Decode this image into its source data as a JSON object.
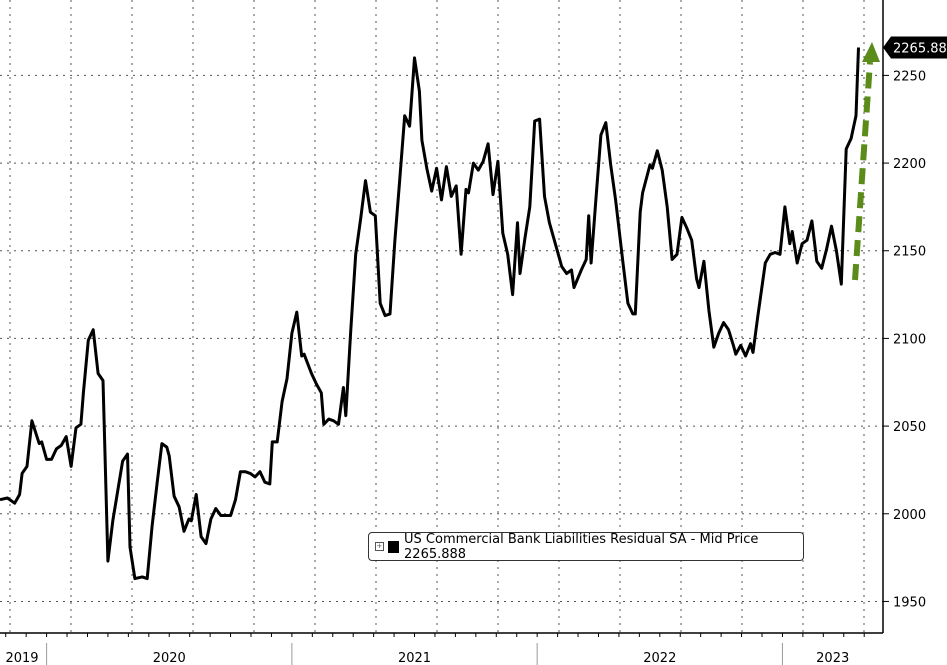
{
  "chart_data": {
    "type": "line",
    "title": "",
    "xlabel": "",
    "ylabel": "",
    "x_ticks": [
      "2019",
      "2020",
      "2021",
      "2022",
      "2023"
    ],
    "y_ticks": [
      1950,
      2000,
      2050,
      2100,
      2150,
      2200,
      2250
    ],
    "xlim": [
      2019.81,
      2023.41
    ],
    "ylim": [
      1932,
      2293
    ],
    "grid": true,
    "y_axis_side": "right",
    "legend_position": "bottom-right",
    "last_value_label": "2265.888",
    "annotation": {
      "type": "dashed-arrow",
      "direction": "up",
      "color": "#5b8c1a"
    },
    "series": [
      {
        "name": "US Commercial Bank Liabilities Residual SA - Mid Price 2265.888",
        "color": "#000000",
        "x": [
          2019.81,
          2019.84,
          2019.87,
          2019.89,
          2019.9,
          2019.92,
          2019.94,
          2019.97,
          2019.98,
          2020.0,
          2020.02,
          2020.04,
          2020.06,
          2020.08,
          2020.1,
          2020.12,
          2020.14,
          2020.15,
          2020.17,
          2020.19,
          2020.21,
          2020.23,
          2020.25,
          2020.27,
          2020.29,
          2020.31,
          2020.33,
          2020.34,
          2020.36,
          2020.39,
          2020.41,
          2020.43,
          2020.45,
          2020.47,
          2020.49,
          2020.5,
          2020.52,
          2020.54,
          2020.56,
          2020.58,
          2020.59,
          2020.61,
          2020.63,
          2020.65,
          2020.67,
          2020.69,
          2020.71,
          2020.73,
          2020.75,
          2020.77,
          2020.79,
          2020.81,
          2020.83,
          2020.85,
          2020.87,
          2020.89,
          2020.91,
          2020.92,
          2020.94,
          2020.96,
          2020.98,
          2021.0,
          2021.02,
          2021.04,
          2021.05,
          2021.08,
          2021.1,
          2021.12,
          2021.13,
          2021.15,
          2021.17,
          2021.19,
          2021.21,
          2021.22,
          2021.24,
          2021.26,
          2021.28,
          2021.3,
          2021.32,
          2021.34,
          2021.36,
          2021.38,
          2021.4,
          2021.42,
          2021.44,
          2021.46,
          2021.48,
          2021.5,
          2021.52,
          2021.53,
          2021.55,
          2021.57,
          2021.59,
          2021.61,
          2021.63,
          2021.65,
          2021.67,
          2021.69,
          2021.71,
          2021.72,
          2021.74,
          2021.76,
          2021.78,
          2021.8,
          2021.82,
          2021.84,
          2021.86,
          2021.88,
          2021.9,
          2021.92,
          2021.93,
          2021.95,
          2021.97,
          2021.99,
          2022.01,
          2022.03,
          2022.05,
          2022.08,
          2022.1,
          2022.12,
          2022.14,
          2022.15,
          2022.18,
          2022.2,
          2022.21,
          2022.22,
          2022.24,
          2022.26,
          2022.28,
          2022.3,
          2022.32,
          2022.35,
          2022.37,
          2022.39,
          2022.4,
          2022.42,
          2022.43,
          2022.46,
          2022.47,
          2022.49,
          2022.51,
          2022.53,
          2022.55,
          2022.57,
          2022.59,
          2022.61,
          2022.63,
          2022.65,
          2022.66,
          2022.68,
          2022.7,
          2022.72,
          2022.74,
          2022.76,
          2022.78,
          2022.8,
          2022.81,
          2022.83,
          2022.85,
          2022.87,
          2022.88,
          2022.9,
          2022.93,
          2022.95,
          2022.97,
          2022.99,
          2023.01,
          2023.03,
          2023.04,
          2023.06,
          2023.08,
          2023.1,
          2023.12,
          2023.14,
          2023.16,
          2023.18,
          2023.2,
          2023.22,
          2023.24,
          2023.26,
          2023.28,
          2023.3,
          2023.31
        ],
        "y": [
          2008,
          2009,
          2006,
          2011,
          2023,
          2027,
          2053,
          2040,
          2041,
          2031,
          2031,
          2037,
          2039,
          2044,
          2027,
          2049,
          2051,
          2069,
          2099,
          2105,
          2080,
          2076,
          1973,
          1996,
          2013,
          2030,
          2034,
          1981,
          1963,
          1964,
          1963,
          1993,
          2017,
          2040,
          2038,
          2033,
          2010,
          2004,
          1990,
          1997,
          1996,
          2011,
          1987,
          1983,
          1997,
          2003,
          1999,
          1999,
          1999,
          2008,
          2024,
          2024,
          2023,
          2021,
          2024,
          2018,
          2017,
          2041,
          2041,
          2064,
          2077,
          2103,
          2115,
          2090,
          2091,
          2080,
          2074,
          2069,
          2051,
          2054,
          2053,
          2051,
          2072,
          2056,
          2104,
          2148,
          2168,
          2190,
          2172,
          2170,
          2120,
          2113,
          2114,
          2156,
          2191,
          2227,
          2221,
          2260,
          2241,
          2213,
          2197,
          2184,
          2197,
          2179,
          2198,
          2181,
          2187,
          2148,
          2185,
          2183,
          2200,
          2196,
          2201,
          2211,
          2182,
          2201,
          2160,
          2148,
          2125,
          2166,
          2137,
          2157,
          2175,
          2224,
          2225,
          2181,
          2166,
          2151,
          2141,
          2137,
          2139,
          2129,
          2139,
          2145,
          2170,
          2143,
          2180,
          2216,
          2223,
          2199,
          2179,
          2143,
          2120,
          2114,
          2114,
          2172,
          2183,
          2199,
          2197,
          2207,
          2196,
          2175,
          2145,
          2148,
          2169,
          2163,
          2156,
          2134,
          2129,
          2144,
          2116,
          2095,
          2103,
          2109,
          2105,
          2096,
          2091,
          2096,
          2090,
          2097,
          2092,
          2113,
          2143,
          2148,
          2149,
          2148,
          2175,
          2154,
          2161,
          2143,
          2154,
          2156,
          2167,
          2144,
          2140,
          2151,
          2164,
          2150,
          2131,
          2208,
          2214,
          2227,
          2265.888
        ]
      }
    ]
  }
}
